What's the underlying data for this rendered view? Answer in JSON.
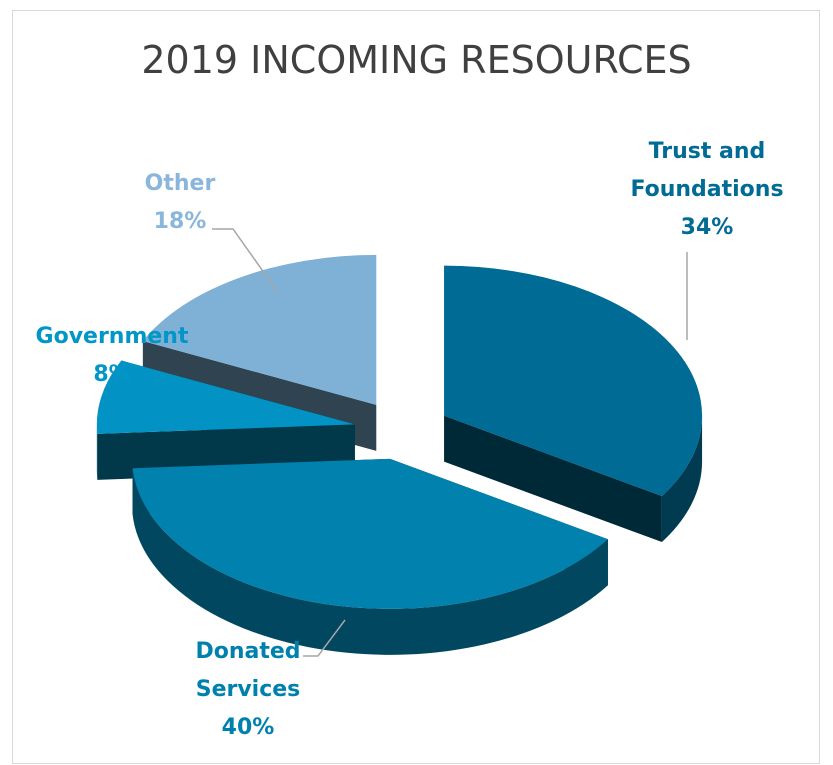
{
  "chart_data": {
    "type": "pie",
    "title": "2019 INCOMING RESOURCES",
    "slices": [
      {
        "label": "Trust and Foundations",
        "label_lines": [
          "Trust and",
          "Foundations"
        ],
        "value": 34,
        "pct_text": "34%",
        "color": "#006b94",
        "label_color": "#006b94"
      },
      {
        "label": "Donated Services",
        "label_lines": [
          "Donated",
          "Services"
        ],
        "value": 40,
        "pct_text": "40%",
        "color": "#0181ad",
        "label_color": "#0081ad"
      },
      {
        "label": "Government",
        "label_lines": [
          "Government"
        ],
        "value": 8,
        "pct_text": "8%",
        "color": "#0293c4",
        "label_color": "#0096c8"
      },
      {
        "label": "Other",
        "label_lines": [
          "Other"
        ],
        "value": 18,
        "pct_text": "18%",
        "color": "#7fb1d6",
        "label_color": "#8ab6dc"
      }
    ],
    "style": "3d-exploded"
  }
}
